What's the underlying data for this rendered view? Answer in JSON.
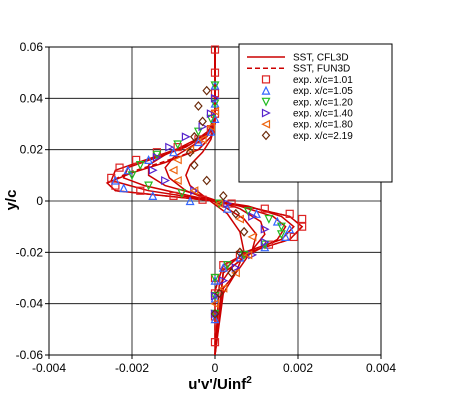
{
  "chart_data": {
    "type": "line",
    "xlabel": "u'v'/Uinf",
    "xlabel_superscript": "2",
    "ylabel": "y/c",
    "xlim": [
      -0.004,
      0.004
    ],
    "ylim": [
      -0.06,
      0.06
    ],
    "xticks": [
      -0.004,
      -0.002,
      0,
      0.002,
      0.004
    ],
    "xtick_labels": [
      "-0.004",
      "-0.002",
      "0",
      "0.002",
      "0.004"
    ],
    "yticks": [
      -0.06,
      -0.04,
      -0.02,
      0,
      0.02,
      0.04,
      0.06
    ],
    "ytick_labels": [
      "-0.06",
      "-0.04",
      "-0.02",
      "0",
      "0.02",
      "0.04",
      "0.06"
    ],
    "grid": true,
    "legend_placement": "top-right",
    "series": [
      {
        "name": "SST, CFL3D",
        "kind": "line",
        "dash": "solid",
        "color": "#cc0000",
        "profiles": [
          {
            "x": [
              0,
              0,
              -0.0001,
              -0.0004,
              -0.0012,
              -0.002,
              -0.0026,
              -0.0024,
              -0.0012,
              0,
              0.001,
              0.0018,
              0.0021,
              0.0018,
              0.0008,
              0.0002,
              0,
              0
            ],
            "y": [
              0.06,
              0.035,
              0.025,
              0.02,
              0.015,
              0.011,
              0.007,
              0.004,
              0.002,
              0,
              -0.003,
              -0.006,
              -0.01,
              -0.015,
              -0.02,
              -0.025,
              -0.035,
              -0.06
            ]
          },
          {
            "x": [
              0,
              0,
              -0.0001,
              -0.0006,
              -0.0015,
              -0.0024,
              -0.0025,
              -0.0016,
              -0.0004,
              0.0008,
              0.0016,
              0.0019,
              0.0016,
              0.0007,
              0.0002,
              0
            ],
            "y": [
              0.06,
              0.035,
              0.028,
              0.022,
              0.017,
              0.012,
              0.008,
              0.004,
              0.001,
              -0.002,
              -0.006,
              -0.01,
              -0.015,
              -0.02,
              -0.027,
              -0.06
            ]
          },
          {
            "x": [
              0,
              0,
              -0.0002,
              -0.0007,
              -0.0014,
              -0.0021,
              -0.0022,
              -0.0017,
              -0.0006,
              0.0006,
              0.0014,
              0.0017,
              0.0015,
              0.0008,
              0.0002,
              0
            ],
            "y": [
              0.06,
              0.033,
              0.026,
              0.021,
              0.017,
              0.013,
              0.009,
              0.006,
              0.002,
              -0.002,
              -0.006,
              -0.01,
              -0.015,
              -0.021,
              -0.028,
              -0.06
            ]
          },
          {
            "x": [
              0,
              0,
              -0.0002,
              -0.0007,
              -0.0012,
              -0.0016,
              -0.0016,
              -0.0012,
              -0.0003,
              0.0006,
              0.0011,
              0.0012,
              0.0009,
              0.0004,
              0.0001,
              0
            ],
            "y": [
              0.06,
              0.032,
              0.026,
              0.022,
              0.018,
              0.014,
              0.01,
              0.006,
              0.002,
              -0.003,
              -0.008,
              -0.013,
              -0.019,
              -0.026,
              -0.033,
              -0.06
            ]
          },
          {
            "x": [
              0,
              0,
              -0.0002,
              -0.0006,
              -0.001,
              -0.0012,
              -0.0011,
              -0.0007,
              0.0001,
              0.0007,
              0.001,
              0.0009,
              0.0006,
              0.0002,
              0
            ],
            "y": [
              0.06,
              0.03,
              0.025,
              0.021,
              0.017,
              0.013,
              0.009,
              0.004,
              -0.001,
              -0.007,
              -0.013,
              -0.019,
              -0.026,
              -0.034,
              -0.06
            ]
          },
          {
            "x": [
              0,
              0,
              -0.0001,
              -0.0003,
              -0.0006,
              -0.0007,
              -0.0006,
              -0.0002,
              0.0003,
              0.0006,
              0.0007,
              0.0005,
              0.0002,
              0
            ],
            "y": [
              0.06,
              0.03,
              0.024,
              0.019,
              0.014,
              0.01,
              0.006,
              0.001,
              -0.005,
              -0.012,
              -0.02,
              -0.028,
              -0.036,
              -0.06
            ]
          }
        ]
      },
      {
        "name": "SST, FUN3D",
        "kind": "line",
        "dash": "dashed",
        "color": "#cc0000",
        "profiles": [
          {
            "x": [
              0,
              0,
              -0.0001,
              -0.0004,
              -0.0013,
              -0.0021,
              -0.0026,
              -0.0024,
              -0.0012,
              0,
              0.001,
              0.0018,
              0.0021,
              0.0018,
              0.0008,
              0.0002,
              0,
              0
            ],
            "y": [
              0.06,
              0.035,
              0.025,
              0.02,
              0.015,
              0.011,
              0.007,
              0.004,
              0.002,
              0,
              -0.003,
              -0.006,
              -0.01,
              -0.015,
              -0.02,
              -0.025,
              -0.035,
              -0.06
            ]
          }
        ]
      },
      {
        "name": "exp. x/c=1.01",
        "kind": "marker",
        "marker": "square",
        "color": "#dd2222",
        "x": [
          0,
          0,
          0,
          0,
          -0.0001,
          -0.0004,
          -0.0009,
          -0.0014,
          -0.0019,
          -0.0023,
          -0.0025,
          -0.0024,
          -0.0018,
          -0.001,
          -0.0003,
          0.0004,
          0.0012,
          0.0018,
          0.0021,
          0.0021,
          0.0019,
          0.0013,
          0.0006,
          0.0002,
          0,
          0,
          0,
          0
        ],
        "y": [
          0.059,
          0.05,
          0.042,
          0.034,
          0.028,
          0.024,
          0.021,
          0.019,
          0.016,
          0.013,
          0.009,
          0.006,
          0.004,
          0.002,
          0.0005,
          -0.001,
          -0.003,
          -0.005,
          -0.007,
          -0.01,
          -0.014,
          -0.017,
          -0.021,
          -0.025,
          -0.03,
          -0.036,
          -0.045,
          -0.055
        ]
      },
      {
        "name": "exp. x/c=1.05",
        "kind": "marker",
        "marker": "triangle-up",
        "color": "#3366ff",
        "x": [
          0,
          0,
          0,
          -0.0001,
          -0.0004,
          -0.001,
          -0.0016,
          -0.0021,
          -0.0024,
          -0.0022,
          -0.0015,
          -0.0006,
          0.0003,
          0.001,
          0.0015,
          0.0018,
          0.0017,
          0.0012,
          0.0006,
          0.0002,
          0,
          0,
          0
        ],
        "y": [
          0.045,
          0.038,
          0.032,
          0.027,
          0.023,
          0.019,
          0.016,
          0.012,
          0.008,
          0.005,
          0.002,
          0,
          -0.003,
          -0.005,
          -0.008,
          -0.011,
          -0.014,
          -0.018,
          -0.022,
          -0.026,
          -0.031,
          -0.038,
          -0.046
        ]
      },
      {
        "name": "exp. x/c=1.20",
        "kind": "marker",
        "marker": "triangle-down",
        "color": "#22bb22",
        "x": [
          0,
          0,
          -0.0001,
          -0.0004,
          -0.0009,
          -0.0014,
          -0.0018,
          -0.002,
          -0.0016,
          -0.0008,
          0.0001,
          0.0008,
          0.0013,
          0.0016,
          0.0016,
          0.0012,
          0.0007,
          0.0003,
          0,
          0,
          0
        ],
        "y": [
          0.045,
          0.038,
          0.032,
          0.027,
          0.022,
          0.018,
          0.014,
          0.01,
          0.006,
          0.003,
          -0.001,
          -0.004,
          -0.007,
          -0.01,
          -0.013,
          -0.017,
          -0.021,
          -0.025,
          -0.03,
          -0.037,
          -0.044
        ]
      },
      {
        "name": "exp. x/c=1.40",
        "kind": "marker",
        "marker": "triangle-right",
        "color": "#5522cc",
        "x": [
          0,
          -0.0001,
          -0.0003,
          -0.0007,
          -0.0011,
          -0.0014,
          -0.0015,
          -0.0012,
          -0.0005,
          0.0003,
          0.0009,
          0.0012,
          0.0012,
          0.0009,
          0.0005,
          0.0002,
          0,
          0
        ],
        "y": [
          0.04,
          0.034,
          0.029,
          0.025,
          0.021,
          0.017,
          0.012,
          0.008,
          0.004,
          -0.001,
          -0.006,
          -0.011,
          -0.016,
          -0.021,
          -0.026,
          -0.031,
          -0.037,
          -0.044
        ]
      },
      {
        "name": "exp. x/c=1.80",
        "kind": "marker",
        "marker": "triangle-left",
        "color": "#ee6611",
        "x": [
          0,
          -0.0001,
          -0.0003,
          -0.0006,
          -0.0009,
          -0.001,
          -0.0009,
          -0.0005,
          0.0001,
          0.0006,
          0.0009,
          0.0008,
          0.0005,
          0.0002,
          0
        ],
        "y": [
          0.035,
          0.029,
          0.024,
          0.02,
          0.016,
          0.012,
          0.008,
          0.004,
          -0.001,
          -0.007,
          -0.014,
          -0.021,
          -0.028,
          -0.034,
          -0.04
        ]
      },
      {
        "name": "exp. x/c=2.19",
        "kind": "marker",
        "marker": "diamond",
        "color": "#6b2a0a",
        "x": [
          -0.0002,
          -0.0004,
          -0.0003,
          -0.0005,
          -0.0006,
          -0.0005,
          -0.0002,
          0.0002,
          0.0005,
          0.0007,
          0.0006,
          0.0004,
          0.0001,
          0
        ],
        "y": [
          0.043,
          0.037,
          0.031,
          0.025,
          0.019,
          0.014,
          0.008,
          0.002,
          -0.005,
          -0.012,
          -0.02,
          -0.028,
          -0.036,
          -0.044
        ]
      }
    ]
  }
}
